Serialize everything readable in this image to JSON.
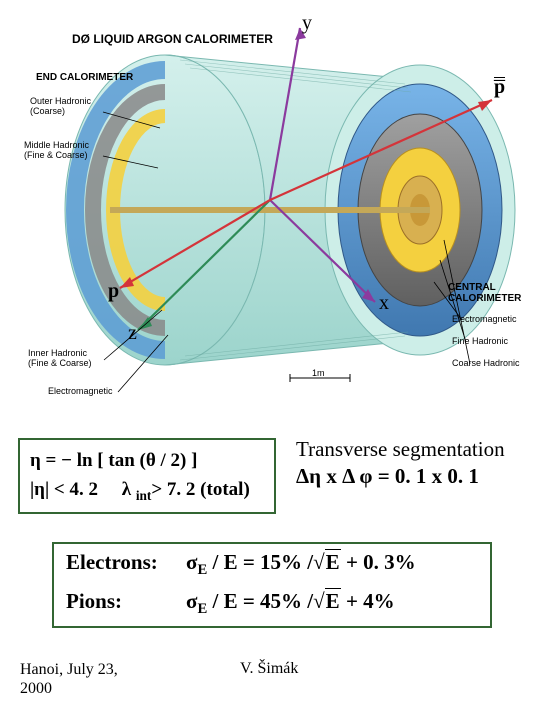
{
  "diagram": {
    "title": "DØ LIQUID ARGON CALORIMETER",
    "end_cal_label": "END CALORIMETER",
    "outer_hadronic": "Outer Hadronic\n(Coarse)",
    "middle_hadronic": "Middle Hadronic\n(Fine & Coarse)",
    "inner_hadronic": "Inner Hadronic\n(Fine & Coarse)",
    "electromagnetic": "Electromagnetic",
    "central_cal": "CENTRAL\nCALORIMETER",
    "em": "Electromagnetic",
    "fine_had": "Fine Hadronic",
    "coarse_had": "Coarse Hadronic",
    "scale": "1m",
    "axes": {
      "y": "y",
      "x": "x",
      "z": "z",
      "p": "p",
      "pbar": "p"
    },
    "colors": {
      "outer_shell": "#b8e4e0",
      "outer_ring": "#5a9bd4",
      "middle_ring": "#888888",
      "inner_yellow": "#f4d03f",
      "core": "#d4a84b",
      "axis_purple": "#8b3a9e",
      "axis_red": "#d4343a",
      "axis_green": "#2e8b57"
    }
  },
  "formula": {
    "line1_pre": "η = − ln [ tan (",
    "line1_theta": "θ",
    "line1_post": " / 2) ]",
    "line2_pre": "|η| < ",
    "line2_val": "4. 2",
    "line2_lam": "λ ",
    "line2_sub": "int",
    "line2_gt": "> 7. 2 (total)"
  },
  "segmentation": {
    "title": "Transverse segmentation",
    "expr": "Δη x Δ φ = 0. 1 x 0. 1"
  },
  "performance": {
    "electrons_label": "Electrons:",
    "electrons_expr_a": "σ",
    "electrons_sub": "E",
    "electrons_expr_b": " / E = 15% /",
    "electrons_root": "E",
    "electrons_tail": "  +  0. 3%",
    "pions_label": "Pions:",
    "pions_expr_a": "σ",
    "pions_sub": "E",
    "pions_expr_b": " / E = 45% /",
    "pions_root": "E",
    "pions_tail": "  + 4%"
  },
  "footer": {
    "left": "Hanoi, July 23, 2000",
    "center": "V. Šimák"
  }
}
